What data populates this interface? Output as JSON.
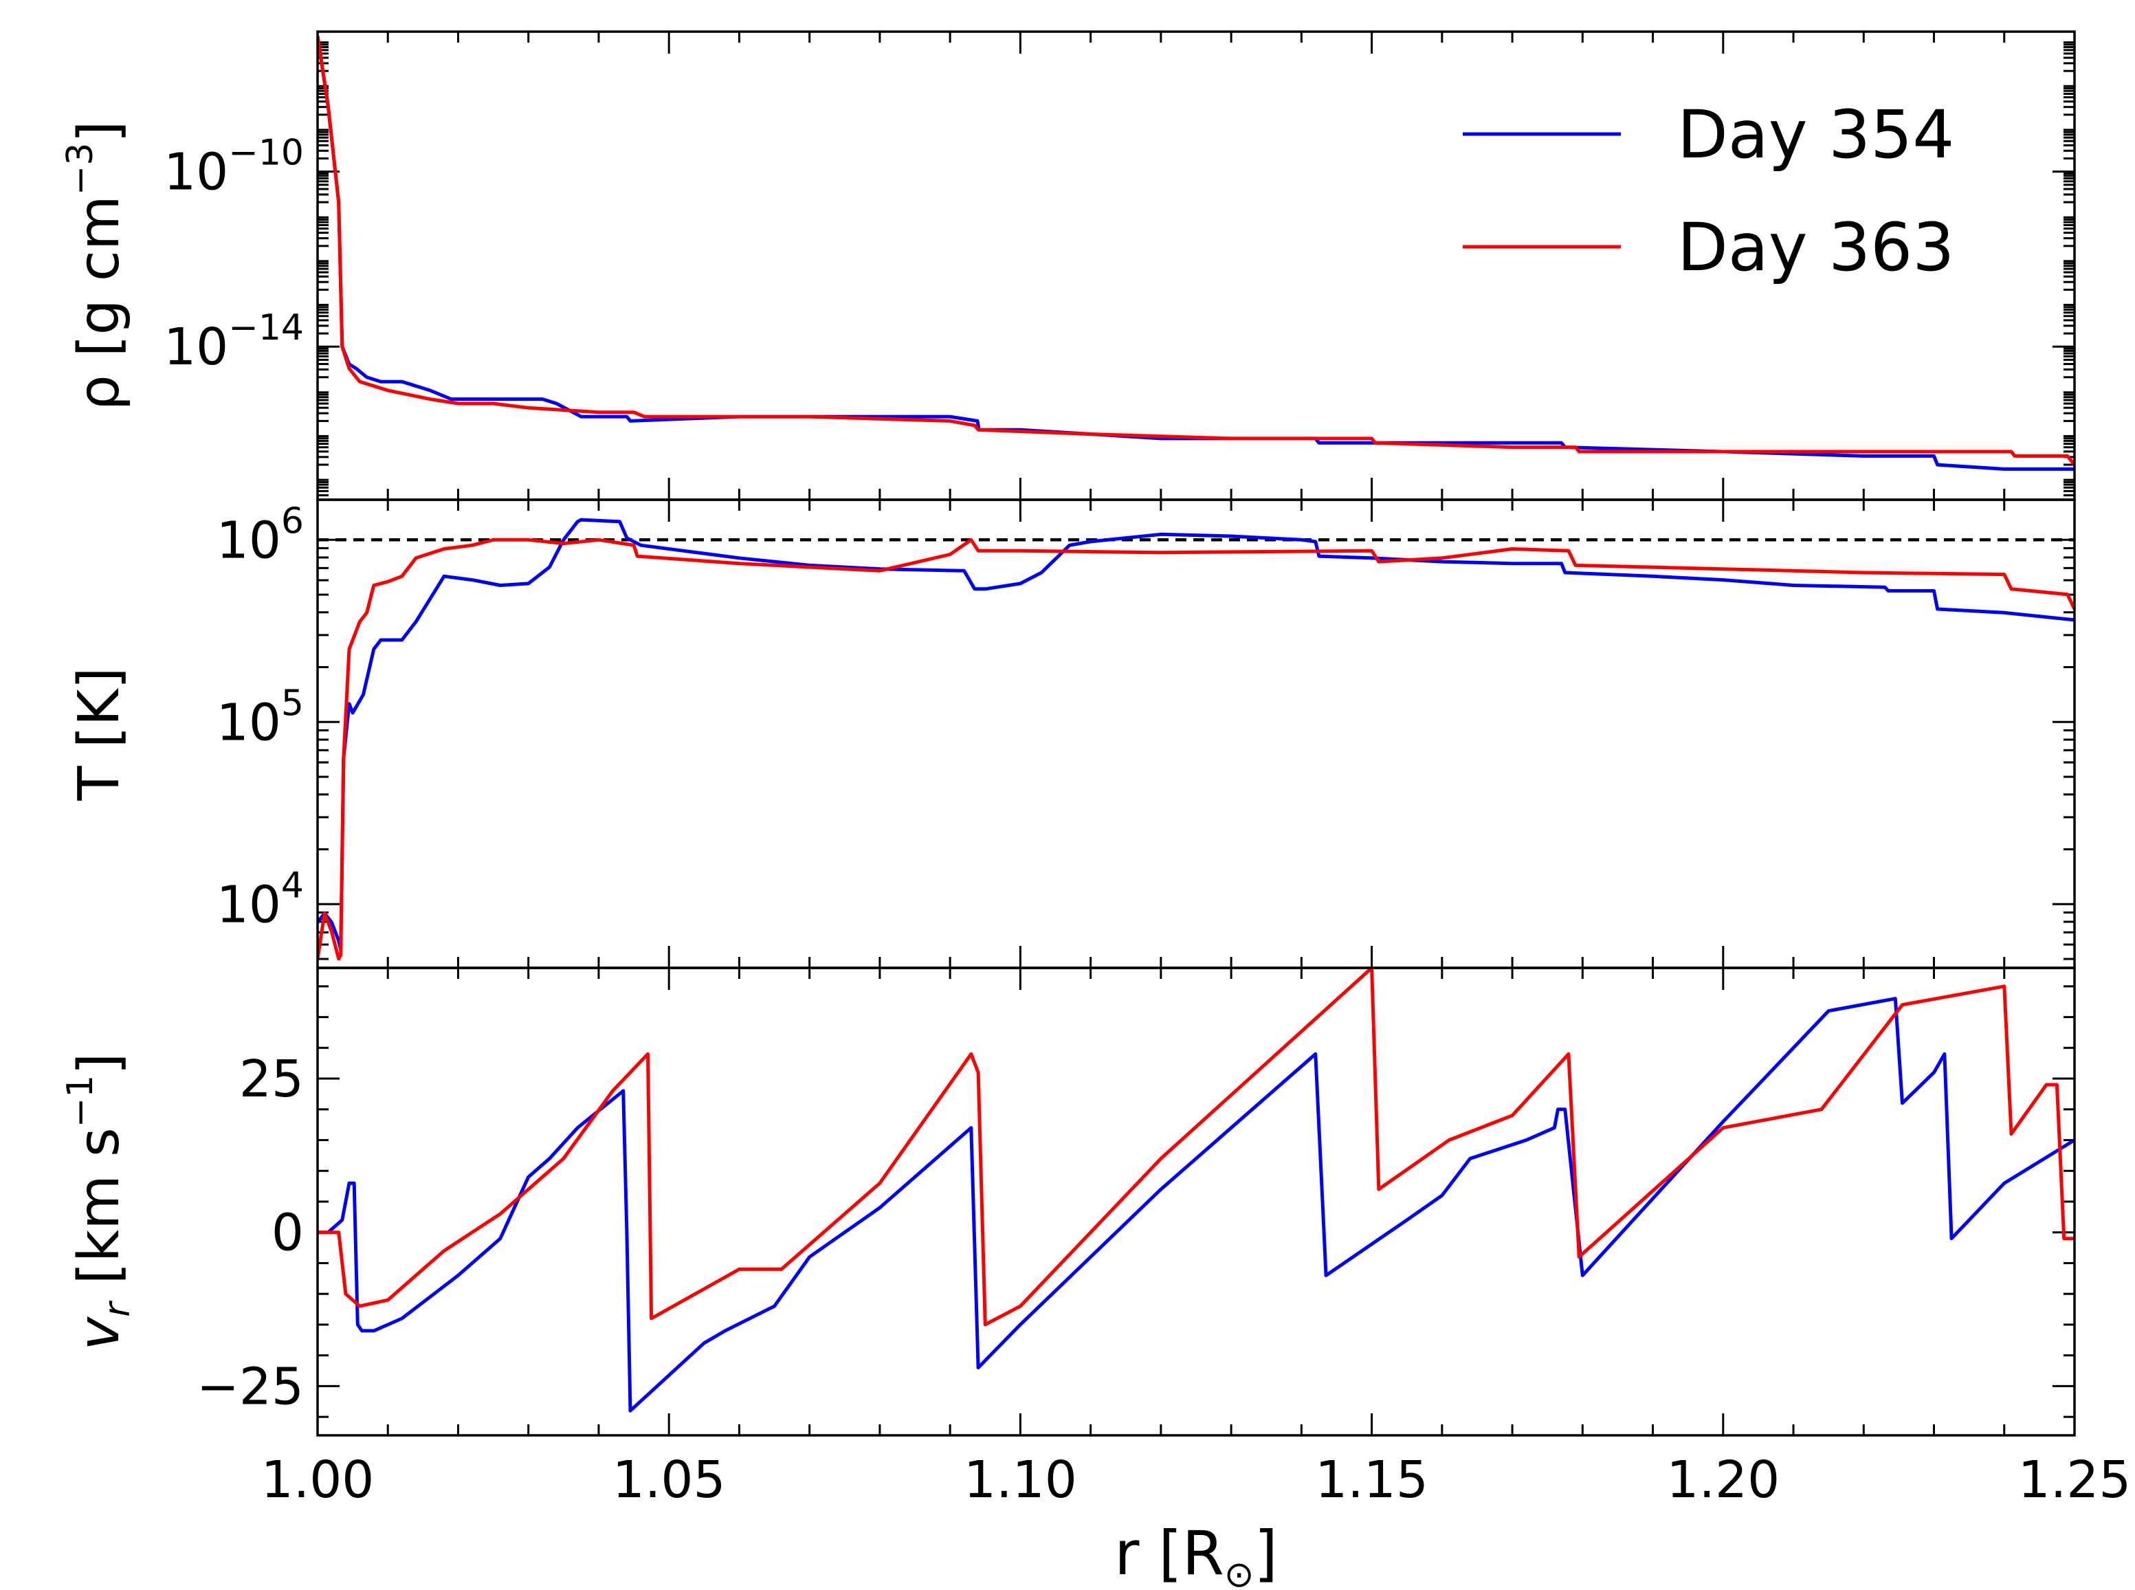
{
  "chart_data": {
    "type": "line",
    "xlim": [
      1.0,
      1.25
    ],
    "x_ticks": [
      1.0,
      1.05,
      1.1,
      1.15,
      1.2,
      1.25
    ],
    "x_tick_labels": [
      "1.00",
      "1.05",
      "1.10",
      "1.15",
      "1.20",
      "1.25"
    ],
    "xlabel": {
      "main": "r [R",
      "sub": "⊙",
      "close": "]"
    },
    "colors": {
      "Day 354": "#0000ff",
      "Day 363": "#ff0000",
      "reference": "#000000"
    },
    "legend": {
      "placement": "top-right of top panel",
      "entries": [
        {
          "name": "Day 354",
          "color": "#0000ff"
        },
        {
          "name": "Day 363",
          "color": "#ff0000"
        }
      ]
    },
    "panels": [
      {
        "id": "density",
        "scale": "log",
        "ylabel": {
          "main": "ρ [g cm",
          "sup": "−3",
          "close": "]"
        },
        "ylim_log10": [
          -17.5,
          -6.8
        ],
        "y_ticks": [
          {
            "value": -10,
            "base": "10",
            "exp": "−10"
          },
          {
            "value": -14,
            "base": "10",
            "exp": "−14"
          }
        ],
        "series": [
          {
            "name": "Day 354",
            "color": "#0000ff",
            "x": [
              1.0,
              1.0015,
              1.003,
              1.0035,
              1.0045,
              1.0055,
              1.007,
              1.009,
              1.012,
              1.016,
              1.019,
              1.023,
              1.028,
              1.032,
              1.034,
              1.0375,
              1.044,
              1.0445,
              1.06,
              1.08,
              1.09,
              1.0939,
              1.0941,
              1.1,
              1.11,
              1.12,
              1.13,
              1.142,
              1.1425,
              1.16,
              1.177,
              1.1775,
              1.2,
              1.22,
              1.23,
              1.2305,
              1.24,
              1.25
            ],
            "log10": [
              -6.9,
              -8.5,
              -10.7,
              -14.0,
              -14.4,
              -14.5,
              -14.7,
              -14.8,
              -14.8,
              -15.0,
              -15.2,
              -15.2,
              -15.2,
              -15.2,
              -15.3,
              -15.6,
              -15.6,
              -15.7,
              -15.6,
              -15.6,
              -15.6,
              -15.7,
              -15.9,
              -15.9,
              -16.0,
              -16.1,
              -16.1,
              -16.1,
              -16.2,
              -16.2,
              -16.2,
              -16.3,
              -16.4,
              -16.5,
              -16.5,
              -16.7,
              -16.8,
              -16.8
            ]
          },
          {
            "name": "Day 363",
            "color": "#ff0000",
            "x": [
              1.0,
              1.0015,
              1.003,
              1.0035,
              1.0045,
              1.006,
              1.01,
              1.016,
              1.02,
              1.025,
              1.03,
              1.04,
              1.045,
              1.0465,
              1.07,
              1.09,
              1.0935,
              1.094,
              1.11,
              1.13,
              1.15,
              1.1505,
              1.17,
              1.179,
              1.1795,
              1.2,
              1.22,
              1.241,
              1.2415,
              1.249,
              1.25
            ],
            "log10": [
              -6.9,
              -8.5,
              -10.7,
              -14.0,
              -14.5,
              -14.8,
              -15.0,
              -15.2,
              -15.3,
              -15.3,
              -15.4,
              -15.5,
              -15.5,
              -15.6,
              -15.6,
              -15.7,
              -15.8,
              -15.9,
              -16.0,
              -16.1,
              -16.1,
              -16.2,
              -16.3,
              -16.3,
              -16.4,
              -16.4,
              -16.4,
              -16.4,
              -16.5,
              -16.5,
              -16.7
            ]
          }
        ]
      },
      {
        "id": "temperature",
        "scale": "log",
        "ylabel": {
          "main": "T [K]"
        },
        "ylim_log10": [
          3.65,
          6.22
        ],
        "reference_line": {
          "log10": 6.0,
          "style": "dashed",
          "color": "#000000"
        },
        "y_ticks": [
          {
            "value": 4,
            "base": "10",
            "exp": "4"
          },
          {
            "value": 5,
            "base": "10",
            "exp": "5"
          },
          {
            "value": 6,
            "base": "10",
            "exp": "6"
          }
        ],
        "series": [
          {
            "name": "Day 354",
            "color": "#0000ff",
            "x": [
              1.0,
              1.001,
              1.002,
              1.003,
              1.0033,
              1.0037,
              1.0045,
              1.005,
              1.0065,
              1.008,
              1.009,
              1.012,
              1.014,
              1.018,
              1.022,
              1.026,
              1.03,
              1.033,
              1.035,
              1.037,
              1.0375,
              1.043,
              1.044,
              1.046,
              1.06,
              1.07,
              1.08,
              1.092,
              1.0935,
              1.095,
              1.1,
              1.103,
              1.107,
              1.11,
              1.12,
              1.13,
              1.14,
              1.142,
              1.1425,
              1.15,
              1.16,
              1.17,
              1.177,
              1.1775,
              1.19,
              1.2,
              1.21,
              1.223,
              1.2235,
              1.23,
              1.2305,
              1.24,
              1.25
            ],
            "log10": [
              3.9,
              3.95,
              3.9,
              3.8,
              3.75,
              4.8,
              5.1,
              5.05,
              5.15,
              5.4,
              5.45,
              5.45,
              5.55,
              5.8,
              5.78,
              5.75,
              5.76,
              5.85,
              6.0,
              6.1,
              6.11,
              6.1,
              6.01,
              5.97,
              5.9,
              5.86,
              5.84,
              5.83,
              5.73,
              5.73,
              5.76,
              5.82,
              5.97,
              5.99,
              6.03,
              6.02,
              6.0,
              5.99,
              5.91,
              5.9,
              5.88,
              5.87,
              5.87,
              5.82,
              5.8,
              5.78,
              5.75,
              5.74,
              5.72,
              5.72,
              5.62,
              5.6,
              5.56
            ]
          },
          {
            "name": "Day 363",
            "color": "#ff0000",
            "x": [
              1.0,
              1.001,
              1.002,
              1.003,
              1.0033,
              1.0037,
              1.0045,
              1.006,
              1.007,
              1.008,
              1.01,
              1.012,
              1.014,
              1.018,
              1.022,
              1.025,
              1.03,
              1.035,
              1.04,
              1.045,
              1.0455,
              1.06,
              1.08,
              1.09,
              1.093,
              1.094,
              1.1,
              1.12,
              1.15,
              1.151,
              1.16,
              1.17,
              1.178,
              1.179,
              1.2,
              1.22,
              1.24,
              1.241,
              1.249,
              1.25
            ],
            "log10": [
              3.7,
              3.95,
              3.85,
              3.7,
              3.72,
              4.8,
              5.4,
              5.55,
              5.6,
              5.75,
              5.77,
              5.8,
              5.9,
              5.95,
              5.97,
              6.0,
              6.0,
              5.98,
              6.0,
              5.97,
              5.91,
              5.87,
              5.83,
              5.92,
              6.0,
              5.94,
              5.94,
              5.93,
              5.94,
              5.88,
              5.9,
              5.95,
              5.94,
              5.86,
              5.84,
              5.82,
              5.81,
              5.73,
              5.7,
              5.62
            ]
          }
        ]
      },
      {
        "id": "velocity",
        "scale": "linear",
        "ylabel": {
          "main": "v",
          "sub": "r",
          "rest": " [km s",
          "sup": "−1",
          "close": "]"
        },
        "ylim": [
          -33,
          43
        ],
        "y_ticks": [
          {
            "value": 25,
            "label": "25"
          },
          {
            "value": 0,
            "label": "0"
          },
          {
            "value": -25,
            "label": "−25"
          }
        ],
        "series": [
          {
            "name": "Day 354",
            "color": "#0000ff",
            "x": [
              1.0,
              1.0015,
              1.0035,
              1.0045,
              1.0052,
              1.0057,
              1.0063,
              1.008,
              1.012,
              1.02,
              1.026,
              1.03,
              1.033,
              1.037,
              1.0435,
              1.044,
              1.0445,
              1.055,
              1.058,
              1.065,
              1.07,
              1.08,
              1.093,
              1.094,
              1.1,
              1.12,
              1.142,
              1.1435,
              1.155,
              1.16,
              1.164,
              1.172,
              1.176,
              1.1765,
              1.1775,
              1.18,
              1.2,
              1.215,
              1.2245,
              1.2255,
              1.23,
              1.2315,
              1.2325,
              1.24,
              1.25
            ],
            "values": [
              0,
              0,
              2,
              8,
              8,
              -15,
              -16,
              -16,
              -14,
              -7,
              -1,
              9,
              12,
              17,
              23,
              0,
              -29,
              -18,
              -16,
              -12,
              -4,
              4,
              17,
              -22,
              -15,
              7,
              29,
              -7,
              2,
              6,
              12,
              15,
              17,
              20,
              20,
              -7,
              18,
              36,
              38,
              21,
              26,
              29,
              -1,
              8,
              15
            ]
          },
          {
            "name": "Day 363",
            "color": "#ff0000",
            "x": [
              1.0,
              1.003,
              1.004,
              1.006,
              1.01,
              1.018,
              1.022,
              1.026,
              1.035,
              1.042,
              1.047,
              1.0475,
              1.06,
              1.066,
              1.08,
              1.093,
              1.094,
              1.095,
              1.1,
              1.12,
              1.15,
              1.151,
              1.161,
              1.17,
              1.178,
              1.1795,
              1.2,
              1.214,
              1.2255,
              1.24,
              1.241,
              1.246,
              1.2475,
              1.2485,
              1.25
            ],
            "values": [
              0,
              0,
              -10,
              -12,
              -11,
              -3,
              0,
              3,
              12,
              23,
              29,
              -14,
              -6,
              -6,
              8,
              29,
              26,
              -15,
              -12,
              12,
              43,
              7,
              15,
              19,
              29,
              -4,
              17,
              20,
              37,
              40,
              16,
              24,
              24,
              -1,
              -1
            ]
          }
        ]
      }
    ]
  }
}
